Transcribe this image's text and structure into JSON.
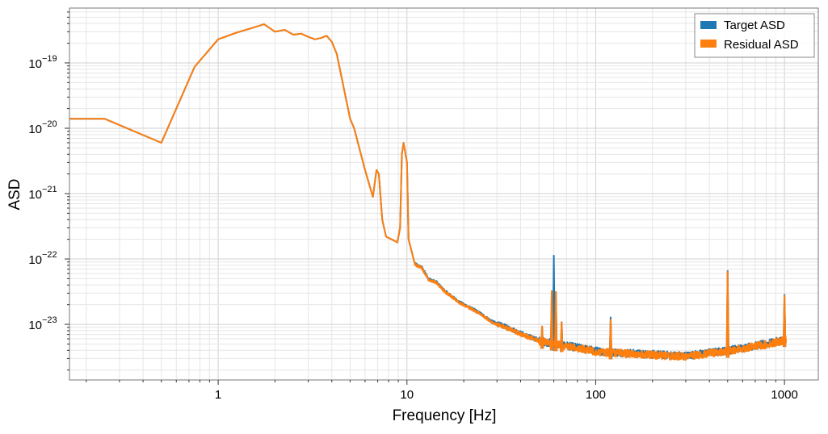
{
  "chart_data": {
    "type": "line",
    "title": "",
    "xlabel": "Frequency [Hz]",
    "ylabel": "ASD",
    "xscale": "log",
    "yscale": "log",
    "xlim": [
      0.163,
      1511
    ],
    "ylim": [
      1.41e-24,
      6.9e-19
    ],
    "grid": true,
    "legend_position": "top-right",
    "x_ticks": [
      {
        "value": 1,
        "label": "1"
      },
      {
        "value": 10,
        "label": "10"
      },
      {
        "value": 100,
        "label": "100"
      },
      {
        "value": 1000,
        "label": "1000"
      }
    ],
    "y_ticks": [
      {
        "value": 1e-19,
        "mant": "10",
        "exp": "−19"
      },
      {
        "value": 1e-20,
        "mant": "10",
        "exp": "−20"
      },
      {
        "value": 1e-21,
        "mant": "10",
        "exp": "−21"
      },
      {
        "value": 1e-22,
        "mant": "10",
        "exp": "−22"
      },
      {
        "value": 1e-23,
        "mant": "10",
        "exp": "−23"
      }
    ],
    "base_curve": {
      "x": [
        0.163,
        0.25,
        0.5,
        0.75,
        1.0,
        1.25,
        1.5,
        1.75,
        2.0,
        2.25,
        2.5,
        2.75,
        3.0,
        3.25,
        3.5,
        3.75,
        4.0,
        4.25,
        5.0,
        5.25,
        6.0,
        6.6,
        6.9,
        7.1,
        7.4,
        7.75,
        8.9,
        9.2,
        9.4,
        9.6,
        10.0,
        10.2,
        11,
        12,
        13,
        14.3,
        15.8,
        19,
        23.5,
        28.5,
        34.5,
        42,
        51,
        69,
        102,
        185,
        300,
        500,
        810,
        1000,
        1020
      ],
      "y": [
        1.4e-20,
        1.4e-20,
        6e-21,
        8.7e-20,
        2.3e-19,
        2.9e-19,
        3.4e-19,
        3.9e-19,
        3e-19,
        3.2e-19,
        2.7e-19,
        2.8e-19,
        2.5e-19,
        2.3e-19,
        2.4e-19,
        2.6e-19,
        2.1e-19,
        1.37e-19,
        1.4e-20,
        1e-20,
        2.3e-21,
        8.9e-22,
        2.3e-21,
        2e-21,
        4e-22,
        2.2e-22,
        1.8e-22,
        3e-22,
        4e-21,
        6e-21,
        3e-21,
        2e-22,
        8.5e-23,
        7.5e-23,
        5e-23,
        4.5e-23,
        3.3e-23,
        2.2e-23,
        1.6e-23,
        1.1e-23,
        9e-24,
        7e-24,
        5.7e-24,
        4.9e-24,
        4e-24,
        3.6e-24,
        3.4e-24,
        4.1e-24,
        5.2e-24,
        6e-24,
        6e-24
      ]
    },
    "series": [
      {
        "name": "Target ASD",
        "color": "#1f77b4",
        "lines": [
          {
            "f": 52,
            "peak": 9.5e-24
          },
          {
            "f": 58.5,
            "peak": 3.3e-23
          },
          {
            "f": 60,
            "peak": 1.15e-22
          },
          {
            "f": 61.5,
            "peak": 3.2e-23
          },
          {
            "f": 66,
            "peak": 1.1e-23
          },
          {
            "f": 120,
            "peak": 1.3e-23
          },
          {
            "f": 500,
            "peak": 6.7e-23
          },
          {
            "f": 1000,
            "peak": 2.9e-23
          }
        ]
      },
      {
        "name": "Residual ASD",
        "color": "#ff7f0e",
        "lines": [
          {
            "f": 52,
            "peak": 9.5e-24
          },
          {
            "f": 58.5,
            "peak": 3.3e-23
          },
          {
            "f": 61.5,
            "peak": 3.2e-23
          },
          {
            "f": 66,
            "peak": 1.1e-23
          },
          {
            "f": 120,
            "peak": 1.2e-23
          },
          {
            "f": 500,
            "peak": 6.5e-23
          },
          {
            "f": 1000,
            "peak": 2.8e-23
          }
        ]
      }
    ]
  }
}
